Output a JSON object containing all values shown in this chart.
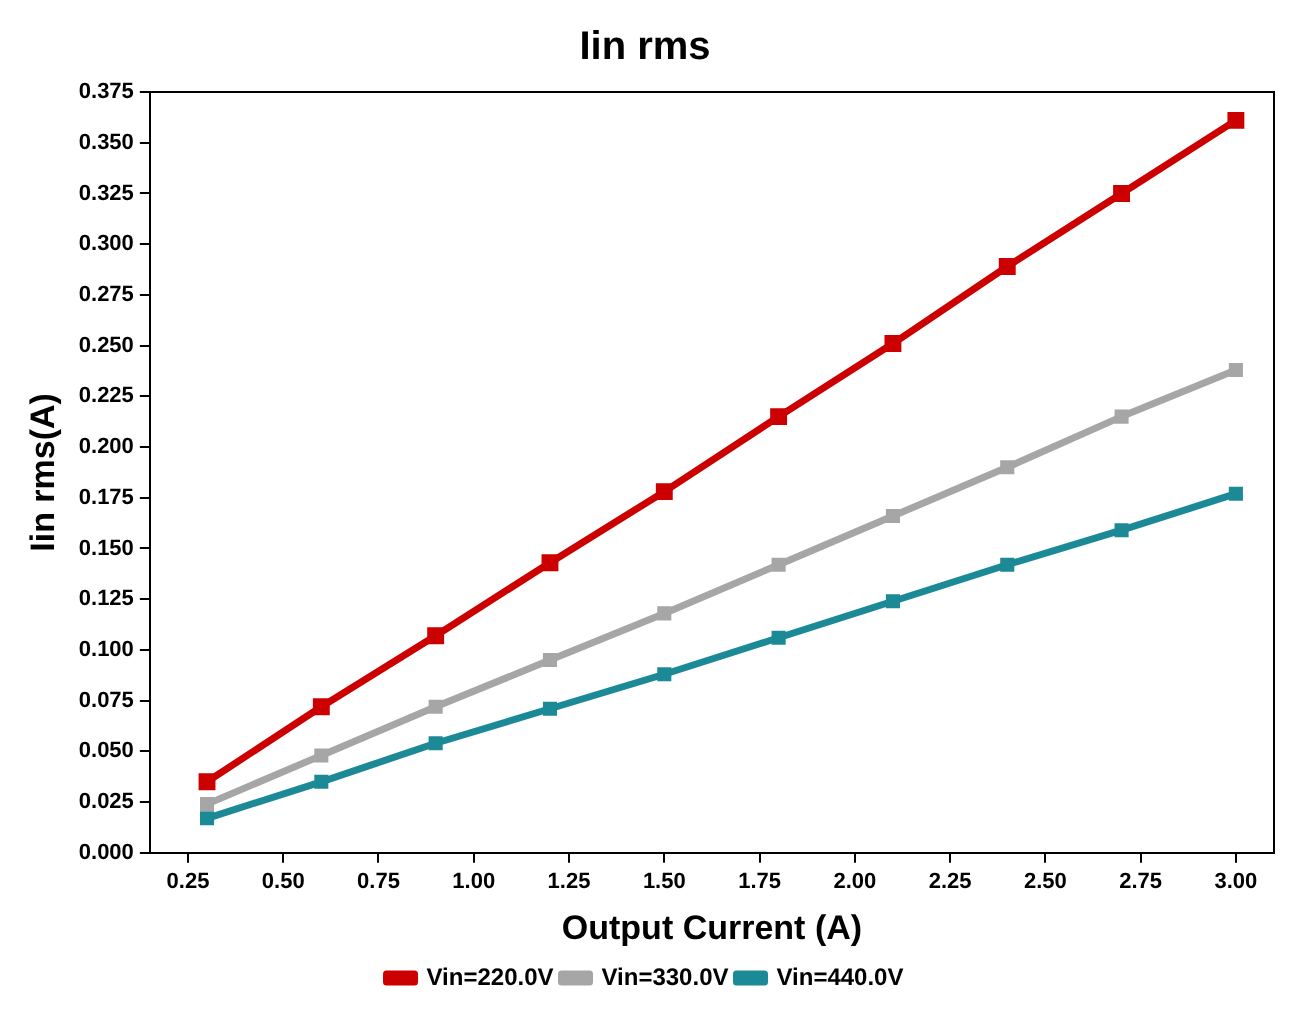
{
  "chart_data": {
    "type": "line",
    "title": "Iin rms",
    "xlabel": "Output Current (A)",
    "ylabel": "Iin rms(A)",
    "x": [
      0.3,
      0.6,
      0.9,
      1.2,
      1.5,
      1.8,
      2.1,
      2.4,
      2.7,
      3.0
    ],
    "series": [
      {
        "name": "Vin=220.0V",
        "color": "#cc0000",
        "values": [
          0.035,
          0.072,
          0.107,
          0.143,
          0.178,
          0.215,
          0.251,
          0.289,
          0.325,
          0.361
        ]
      },
      {
        "name": "Vin=330.0V",
        "color": "#a6a6a6",
        "values": [
          0.024,
          0.048,
          0.072,
          0.095,
          0.118,
          0.142,
          0.166,
          0.19,
          0.215,
          0.238
        ]
      },
      {
        "name": "Vin=440.0V",
        "color": "#1b8a96",
        "values": [
          0.017,
          0.035,
          0.054,
          0.071,
          0.088,
          0.106,
          0.124,
          0.142,
          0.159,
          0.177
        ]
      }
    ],
    "xlim": [
      0.15,
      3.1
    ],
    "xticks": [
      0.25,
      {
        "value": 0.5,
        "label": "0.50"
      },
      0.75,
      {
        "value": 1,
        "label": "1.00"
      },
      1.25,
      {
        "value": 1.5,
        "label": "1.50"
      },
      1.75,
      {
        "value": 2,
        "label": "2.00"
      },
      2.25,
      {
        "value": 2.5,
        "label": "2.50"
      },
      2.75,
      {
        "value": 3,
        "label": "3.00"
      }
    ],
    "ylim": [
      0,
      0.375
    ],
    "yticks": [
      {
        "value": 0,
        "label": "0.000"
      },
      0.025,
      {
        "value": 0.05,
        "label": "0.050"
      },
      0.075,
      {
        "value": 0.1,
        "label": "0.100"
      },
      0.125,
      {
        "value": 0.15,
        "label": "0.150"
      },
      0.175,
      {
        "value": 0.2,
        "label": "0.200"
      },
      0.225,
      {
        "value": 0.25,
        "label": "0.250"
      },
      0.275,
      {
        "value": 0.3,
        "label": "0.300"
      },
      0.325,
      {
        "value": 0.35,
        "label": "0.350"
      },
      0.375
    ],
    "grid": false,
    "legend": "bottom",
    "marker": "square",
    "line_style": "solid"
  }
}
